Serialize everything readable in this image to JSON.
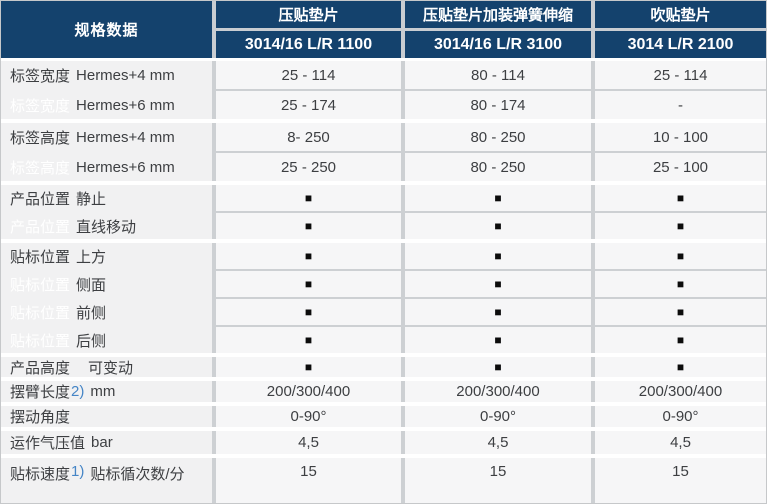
{
  "header": {
    "spec_label": "规格数据",
    "columns": [
      {
        "product": "压贴垫片",
        "model": "3014/16 L/R 1100"
      },
      {
        "product": "压贴垫片加装弹簧伸缩",
        "model": "3014/16 L/R 3100"
      },
      {
        "product": "吹贴垫片",
        "model": "3014 L/R 2100"
      }
    ]
  },
  "square_symbol": "■",
  "colors": {
    "header_navy": "#14426d",
    "footnote_blue": "#4585c6",
    "label_cell_bg": "#f1f1f2",
    "value_cell_bg": "#f6f6f7",
    "divider_gray": "#cdd0d3"
  },
  "groups": [
    {
      "label": "标签宽度",
      "rows": [
        {
          "sub": "Hermes+4 mm",
          "values": [
            "25 - 114",
            "80 - 114",
            "25 - 114"
          ]
        },
        {
          "sub": "Hermes+6 mm",
          "ghost": true,
          "values": [
            "25 - 174",
            "80 - 174",
            "-"
          ]
        }
      ]
    },
    {
      "label": "标签高度",
      "rows": [
        {
          "sub": "Hermes+4 mm",
          "values": [
            "8- 250",
            "80 - 250",
            "10 - 100"
          ]
        },
        {
          "sub": "Hermes+6 mm",
          "ghost": true,
          "values": [
            "25 - 250",
            "80 - 250",
            "25 - 100"
          ]
        }
      ]
    },
    {
      "label": "产品位置",
      "rows": [
        {
          "sub": "静止",
          "values": [
            "■",
            "■",
            "■"
          ]
        },
        {
          "sub": "直线移动",
          "ghost": true,
          "values": [
            "■",
            "■",
            "■"
          ]
        }
      ]
    },
    {
      "label": "贴标位置",
      "rows": [
        {
          "sub": "上方",
          "values": [
            "■",
            "■",
            "■"
          ]
        },
        {
          "sub": "侧面",
          "ghost": true,
          "values": [
            "■",
            "■",
            "■"
          ]
        },
        {
          "sub": "前侧",
          "ghost": true,
          "values": [
            "■",
            "■",
            "■"
          ]
        },
        {
          "sub": "后侧",
          "ghost": true,
          "values": [
            "■",
            "■",
            "■"
          ]
        }
      ]
    },
    {
      "label": "产品高度",
      "rows": [
        {
          "sub": "可变动",
          "wide": true,
          "values": [
            "■",
            "■",
            "■"
          ]
        }
      ]
    },
    {
      "label": "摆臂长度",
      "note": "2)",
      "suffix": "mm",
      "rows": [
        {
          "values": [
            "200/300/400",
            "200/300/400",
            "200/300/400"
          ]
        }
      ]
    },
    {
      "label": "摆动角度",
      "rows": [
        {
          "values": [
            "0-90°",
            "0-90°",
            "0-90°"
          ]
        }
      ]
    },
    {
      "label": "运作气压值",
      "suffix": "bar",
      "rows": [
        {
          "values": [
            "4,5",
            "4,5",
            "4,5"
          ]
        }
      ]
    },
    {
      "label": "贴标速度",
      "note": "1)",
      "suffix": "贴标循次数/分",
      "rows": [
        {
          "values": [
            "15",
            "15",
            "15"
          ]
        }
      ]
    }
  ]
}
